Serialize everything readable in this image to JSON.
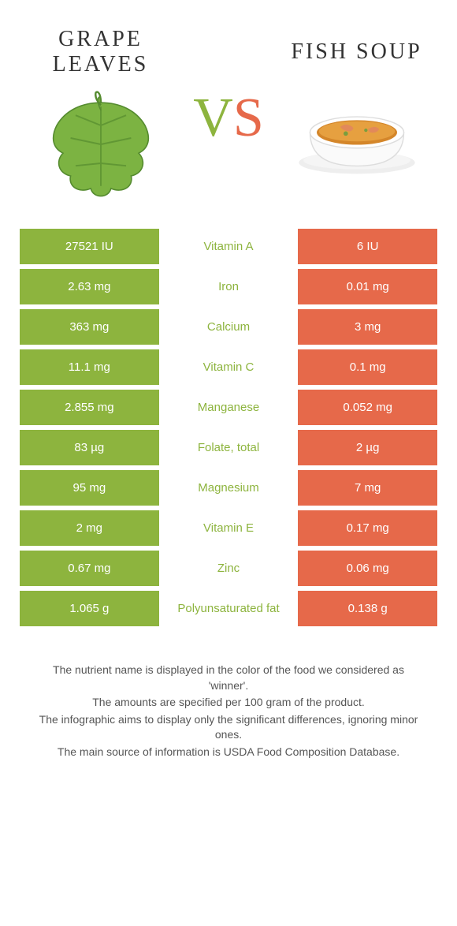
{
  "header": {
    "left_title": "Grape\nleaves",
    "right_title": "Fish soup",
    "vs_v": "V",
    "vs_s": "S"
  },
  "colors": {
    "left": "#8db43e",
    "right": "#e6694a",
    "nutrient_default": "#555",
    "background": "#ffffff"
  },
  "rows": [
    {
      "left": "27521 IU",
      "nutrient": "Vitamin A",
      "right": "6 IU",
      "winner": "left"
    },
    {
      "left": "2.63 mg",
      "nutrient": "Iron",
      "right": "0.01 mg",
      "winner": "left"
    },
    {
      "left": "363 mg",
      "nutrient": "Calcium",
      "right": "3 mg",
      "winner": "left"
    },
    {
      "left": "11.1 mg",
      "nutrient": "Vitamin C",
      "right": "0.1 mg",
      "winner": "left"
    },
    {
      "left": "2.855 mg",
      "nutrient": "Manganese",
      "right": "0.052 mg",
      "winner": "left"
    },
    {
      "left": "83 µg",
      "nutrient": "Folate, total",
      "right": "2 µg",
      "winner": "left"
    },
    {
      "left": "95 mg",
      "nutrient": "Magnesium",
      "right": "7 mg",
      "winner": "left"
    },
    {
      "left": "2 mg",
      "nutrient": "Vitamin E",
      "right": "0.17 mg",
      "winner": "left"
    },
    {
      "left": "0.67 mg",
      "nutrient": "Zinc",
      "right": "0.06 mg",
      "winner": "left"
    },
    {
      "left": "1.065 g",
      "nutrient": "Polyunsaturated fat",
      "right": "0.138 g",
      "winner": "left"
    }
  ],
  "footer": {
    "line1": "The nutrient name is displayed in the color of the food we considered as 'winner'.",
    "line2": "The amounts are specified per 100 gram of the product.",
    "line3": "The infographic aims to display only the significant differences, ignoring minor ones.",
    "line4": "The main source of information is USDA Food Composition Database."
  }
}
